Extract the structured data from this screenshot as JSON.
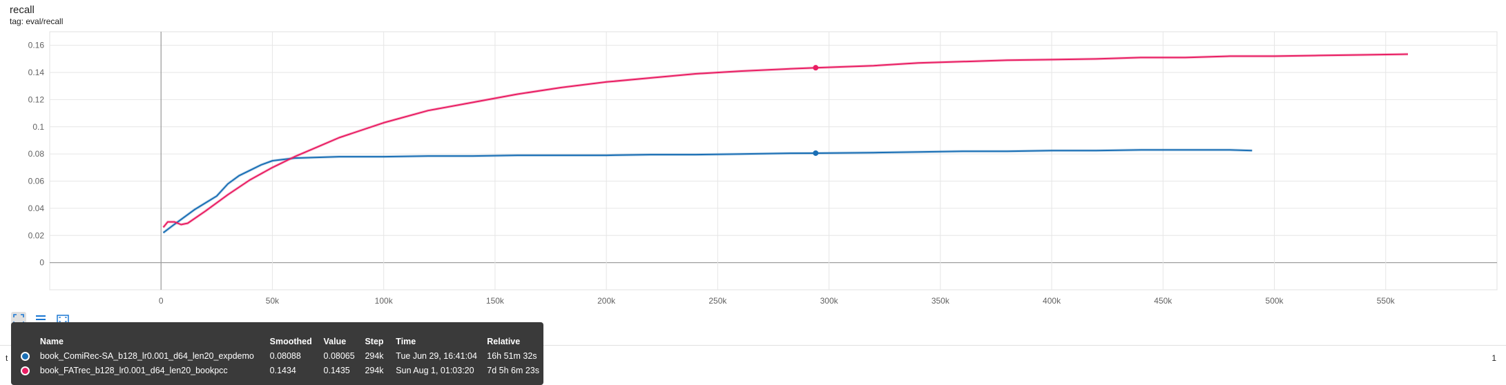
{
  "header": {
    "title": "recall",
    "subtitle": "tag: eval/recall"
  },
  "side": {
    "left_text": "t",
    "right_text": "1"
  },
  "toolbar": {
    "buttons": [
      "fit-domain-icon",
      "toggle-log-icon",
      "fullscreen-icon"
    ]
  },
  "tooltip": {
    "headers": {
      "name": "Name",
      "smoothed": "Smoothed",
      "value": "Value",
      "step": "Step",
      "time": "Time",
      "relative": "Relative"
    },
    "rows": [
      {
        "color": "#1a6fb5",
        "name": "book_ComiRec-SA_b128_lr0.001_d64_len20_expdemo",
        "smoothed": "0.08088",
        "value": "0.08065",
        "step": "294k",
        "time": "Tue Jun 29, 16:41:04",
        "relative": "16h 51m 32s"
      },
      {
        "color": "#e91e63",
        "name": "book_FATrec_b128_lr0.001_d64_len20_bookpcc",
        "smoothed": "0.1434",
        "value": "0.1435",
        "step": "294k",
        "time": "Sun Aug 1, 01:03:20",
        "relative": "7d 5h 6m 23s"
      }
    ]
  },
  "chart_data": {
    "type": "line",
    "title": "recall",
    "subtitle": "tag: eval/recall",
    "xlim": [
      -50000,
      600000
    ],
    "ylim": [
      -0.02,
      0.17
    ],
    "x_ticks": [
      0,
      50000,
      100000,
      150000,
      200000,
      250000,
      300000,
      350000,
      400000,
      450000,
      500000,
      550000
    ],
    "x_tick_labels": [
      "0",
      "50k",
      "100k",
      "150k",
      "200k",
      "250k",
      "300k",
      "350k",
      "400k",
      "450k",
      "500k",
      "550k"
    ],
    "y_ticks": [
      0,
      0.02,
      0.04,
      0.06,
      0.08,
      0.1,
      0.12,
      0.14,
      0.16
    ],
    "y_tick_labels": [
      "0",
      "0.02",
      "0.04",
      "0.06",
      "0.08",
      "0.1",
      "0.12",
      "0.14",
      "0.16"
    ],
    "grid": true,
    "series": [
      {
        "name": "book_ComiRec-SA_b128_lr0.001_d64_len20_expdemo",
        "color": "#1a6fb5",
        "x": [
          1000,
          5000,
          10000,
          15000,
          20000,
          25000,
          30000,
          35000,
          40000,
          45000,
          50000,
          60000,
          70000,
          80000,
          100000,
          120000,
          140000,
          160000,
          180000,
          200000,
          220000,
          240000,
          260000,
          280000,
          294000,
          320000,
          340000,
          360000,
          380000,
          400000,
          420000,
          440000,
          460000,
          480000,
          490000
        ],
        "y": [
          0.022,
          0.027,
          0.033,
          0.039,
          0.044,
          0.049,
          0.058,
          0.064,
          0.068,
          0.072,
          0.075,
          0.077,
          0.0775,
          0.078,
          0.078,
          0.0785,
          0.0785,
          0.079,
          0.079,
          0.079,
          0.0795,
          0.0795,
          0.08,
          0.0805,
          0.0806,
          0.081,
          0.0815,
          0.082,
          0.082,
          0.0825,
          0.0825,
          0.083,
          0.083,
          0.083,
          0.0825
        ]
      },
      {
        "name": "book_FATrec_b128_lr0.001_d64_len20_bookpcc",
        "color": "#e91e63",
        "x": [
          1000,
          3000,
          6000,
          9000,
          12000,
          20000,
          30000,
          40000,
          50000,
          60000,
          70000,
          80000,
          100000,
          120000,
          140000,
          160000,
          180000,
          200000,
          220000,
          240000,
          260000,
          280000,
          294000,
          320000,
          340000,
          360000,
          380000,
          400000,
          420000,
          440000,
          460000,
          480000,
          500000,
          520000,
          540000,
          560000
        ],
        "y": [
          0.026,
          0.03,
          0.03,
          0.028,
          0.029,
          0.038,
          0.05,
          0.061,
          0.07,
          0.078,
          0.085,
          0.092,
          0.103,
          0.112,
          0.118,
          0.124,
          0.129,
          0.133,
          0.136,
          0.139,
          0.141,
          0.1425,
          0.1435,
          0.145,
          0.147,
          0.148,
          0.149,
          0.1495,
          0.15,
          0.151,
          0.151,
          0.152,
          0.152,
          0.1525,
          0.153,
          0.1535
        ]
      }
    ],
    "hover_step": 294000
  }
}
